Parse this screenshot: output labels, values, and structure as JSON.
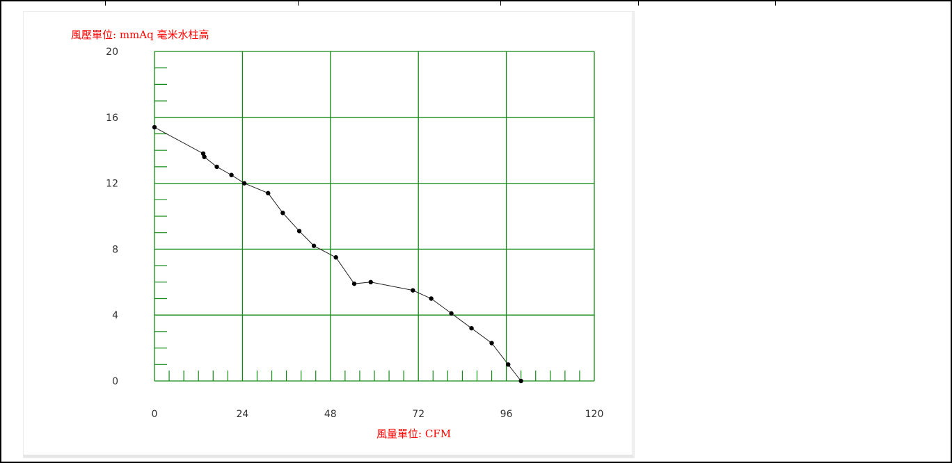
{
  "chart_data": {
    "type": "line",
    "ylabel": "風壓單位:  mmAq 毫米水柱高",
    "xlabel": "風量單位:  CFM",
    "xlim": [
      0,
      120
    ],
    "ylim": [
      0,
      20
    ],
    "x_ticks": [
      0,
      24,
      48,
      72,
      96,
      120
    ],
    "y_ticks": [
      0,
      4,
      8,
      12,
      16,
      20
    ],
    "grid": true,
    "series": [
      {
        "x": [
          0,
          13.3,
          13.6,
          17,
          21,
          24.5,
          31,
          35,
          39.5,
          43.5,
          49.5,
          54.5,
          59,
          70.5,
          75.5,
          81,
          86.5,
          92,
          96.5,
          100
        ],
        "y": [
          15.4,
          13.8,
          13.6,
          13.0,
          12.5,
          12.0,
          11.4,
          10.2,
          9.1,
          8.2,
          7.5,
          5.9,
          6.0,
          5.5,
          5.0,
          4.1,
          3.2,
          2.3,
          1.0,
          0.0
        ]
      }
    ],
    "colors": {
      "grid": "#138a13",
      "line": "#222222",
      "axis_title": "#ff0000"
    }
  }
}
